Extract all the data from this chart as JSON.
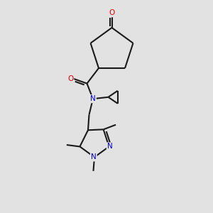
{
  "bg_color": "#e2e2e2",
  "bond_color": "#1a1a1a",
  "bond_width": 1.5,
  "atom_colors": {
    "O": "#dd0000",
    "N": "#0000cc"
  },
  "font_size_atom": 7.5
}
